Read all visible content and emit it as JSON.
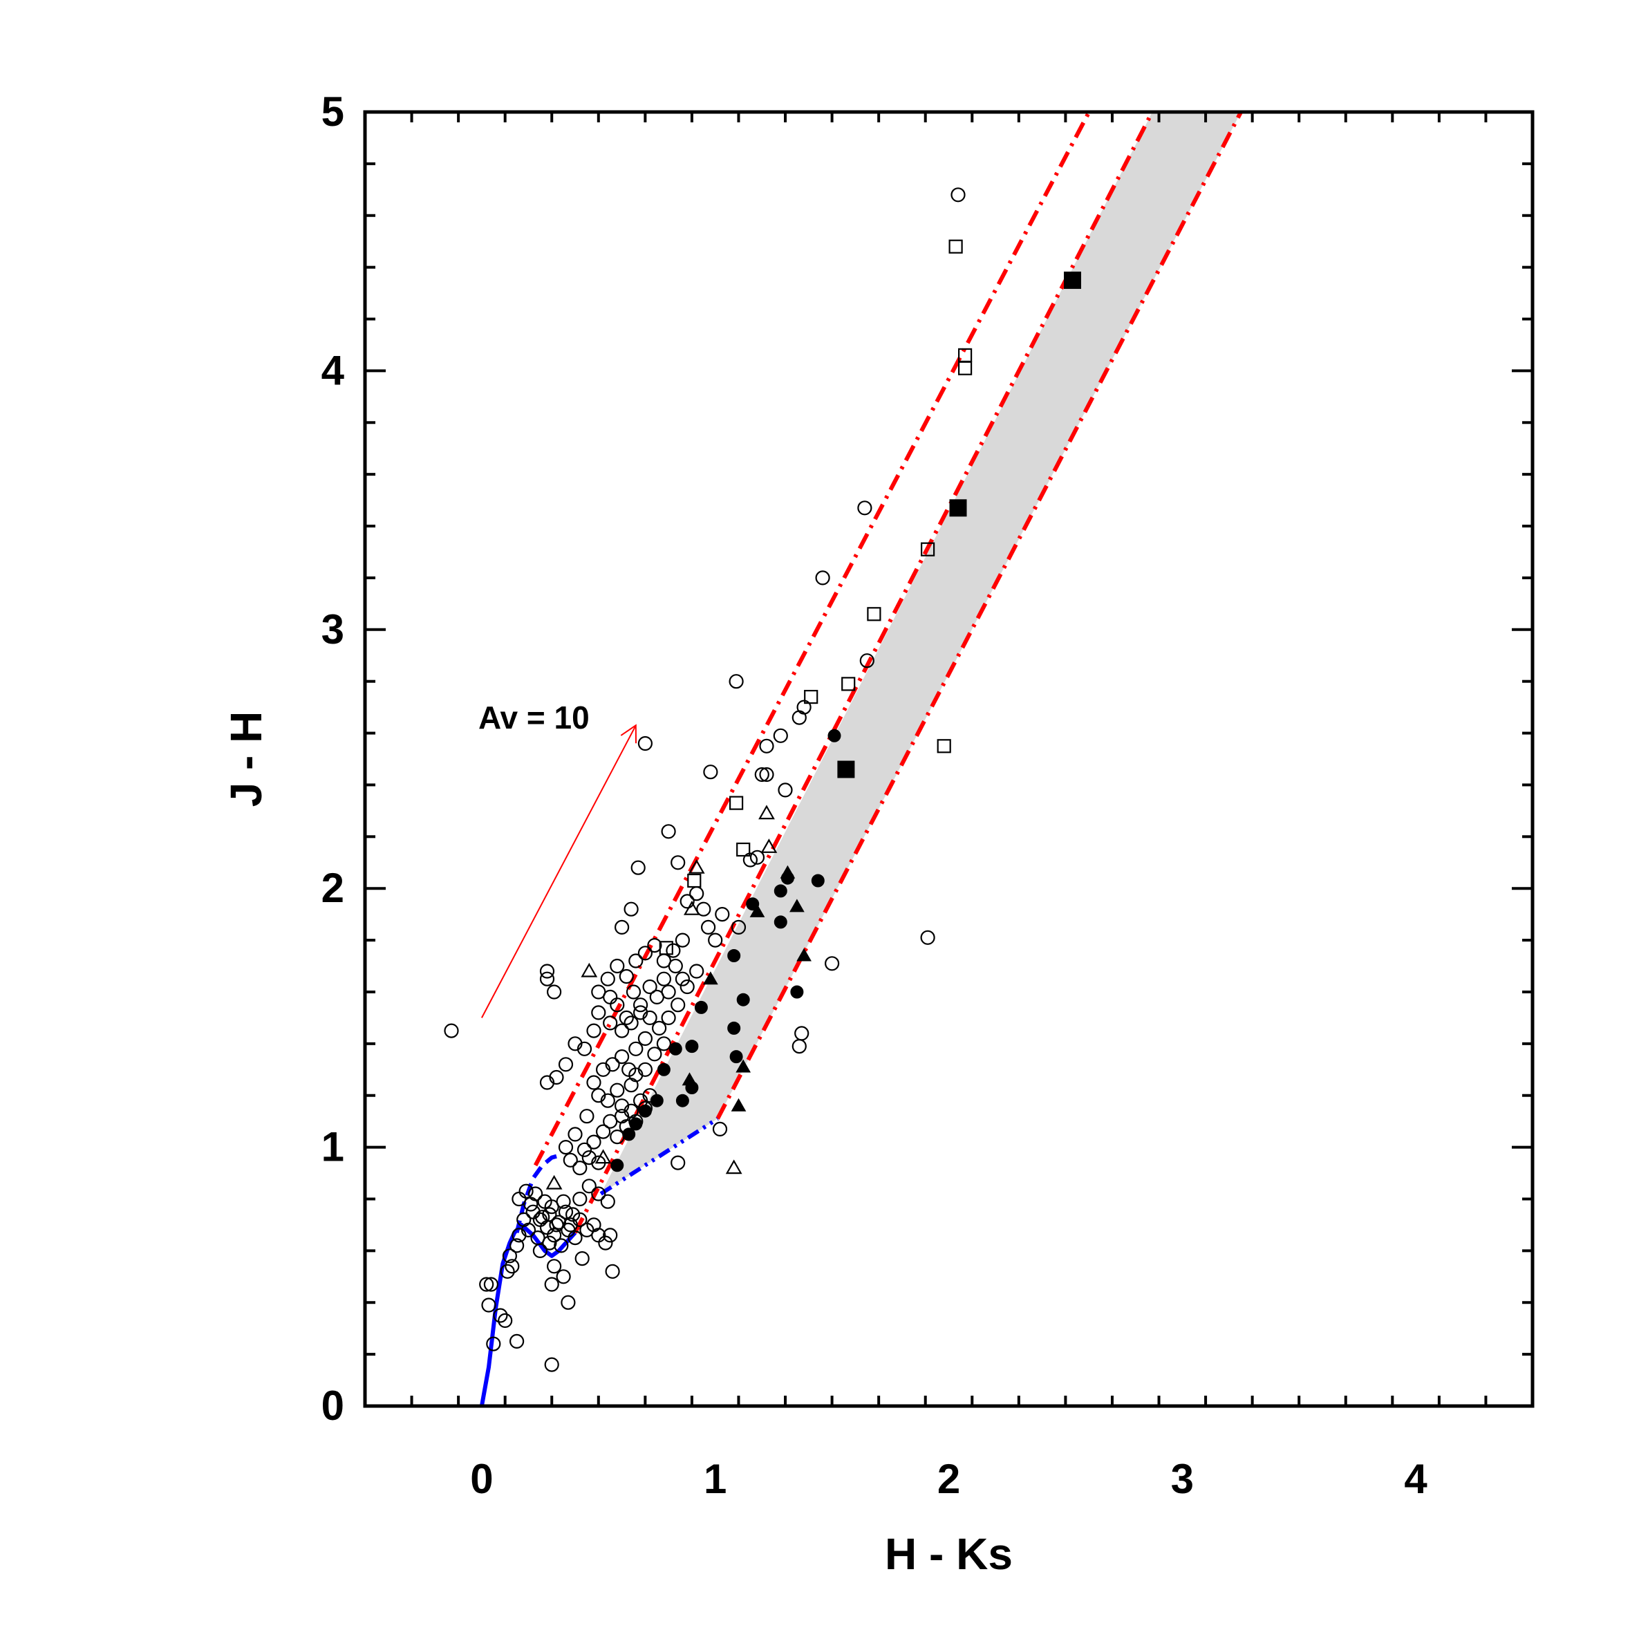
{
  "chart_data": {
    "type": "scatter",
    "title": "",
    "xlabel": "H - Ks",
    "ylabel": "J - H",
    "xlim": [
      -0.5,
      4.5
    ],
    "ylim": [
      0,
      5
    ],
    "x_ticks": [
      "0",
      "1",
      "2",
      "3",
      "4"
    ],
    "y_ticks": [
      "0",
      "1",
      "2",
      "3",
      "4",
      "5"
    ],
    "grid": false,
    "legend": "none",
    "colors": {
      "reddening_lines": "#ff0000",
      "dwarf_locus": "#0000ff",
      "ctts_locus": "#0000ff",
      "shaded_band": "#d9d9d9",
      "markers": "#000000"
    },
    "annotation": {
      "text": "Av = 10",
      "arrow_from": [
        0.0,
        1.5
      ],
      "arrow_to": [
        0.66,
        2.63
      ],
      "color": "#ff0000"
    },
    "dwarf_locus": [
      [
        0.0,
        0.0
      ],
      [
        0.03,
        0.15
      ],
      [
        0.06,
        0.38
      ],
      [
        0.09,
        0.55
      ],
      [
        0.12,
        0.63
      ],
      [
        0.14,
        0.67
      ],
      [
        0.17,
        0.7
      ],
      [
        0.22,
        0.66
      ],
      [
        0.27,
        0.6
      ],
      [
        0.3,
        0.58
      ],
      [
        0.33,
        0.6
      ],
      [
        0.36,
        0.63
      ],
      [
        0.4,
        0.67
      ]
    ],
    "giant_branch": [
      [
        0.15,
        0.67
      ],
      [
        0.18,
        0.78
      ],
      [
        0.22,
        0.88
      ],
      [
        0.26,
        0.93
      ],
      [
        0.3,
        0.96
      ],
      [
        0.34,
        0.97
      ]
    ],
    "ctts_locus": [
      [
        0.51,
        0.82
      ],
      [
        1.01,
        1.11
      ]
    ],
    "reddening_lines": [
      {
        "name": "giant-upper",
        "x": [
          0.23,
          2.63
        ],
        "y": [
          0.93,
          5.05
        ]
      },
      {
        "name": "dwarf-lower",
        "x": [
          0.4,
          2.9
        ],
        "y": [
          0.67,
          5.05
        ]
      },
      {
        "name": "ctts-end",
        "x": [
          1.01,
          3.28
        ],
        "y": [
          1.11,
          5.05
        ]
      }
    ],
    "shaded_band": [
      [
        0.51,
        0.82
      ],
      [
        1.01,
        1.11
      ],
      [
        3.28,
        5.05
      ],
      [
        2.9,
        5.05
      ]
    ],
    "series": [
      {
        "marker": "open-circle",
        "points": [
          [
            -0.13,
            1.45
          ],
          [
            0.02,
            0.47
          ],
          [
            0.03,
            0.39
          ],
          [
            0.04,
            0.47
          ],
          [
            0.05,
            0.24
          ],
          [
            0.08,
            0.35
          ],
          [
            0.1,
            0.33
          ],
          [
            0.11,
            0.52
          ],
          [
            0.12,
            0.58
          ],
          [
            0.13,
            0.54
          ],
          [
            0.15,
            0.25
          ],
          [
            0.15,
            0.62
          ],
          [
            0.16,
            0.66
          ],
          [
            0.18,
            0.72
          ],
          [
            0.2,
            0.68
          ],
          [
            0.22,
            0.75
          ],
          [
            0.24,
            0.65
          ],
          [
            0.26,
            0.73
          ],
          [
            0.28,
            0.69
          ],
          [
            0.3,
            0.77
          ],
          [
            0.32,
            0.7
          ],
          [
            0.34,
            0.62
          ],
          [
            0.36,
            0.75
          ],
          [
            0.38,
            0.7
          ],
          [
            0.4,
            0.65
          ],
          [
            0.16,
            0.8
          ],
          [
            0.19,
            0.83
          ],
          [
            0.21,
            0.78
          ],
          [
            0.23,
            0.82
          ],
          [
            0.25,
            0.72
          ],
          [
            0.27,
            0.79
          ],
          [
            0.29,
            0.74
          ],
          [
            0.31,
            0.66
          ],
          [
            0.33,
            0.71
          ],
          [
            0.35,
            0.79
          ],
          [
            0.37,
            0.68
          ],
          [
            0.39,
            0.74
          ],
          [
            0.42,
            0.72
          ],
          [
            0.45,
            0.68
          ],
          [
            0.48,
            0.7
          ],
          [
            0.5,
            0.66
          ],
          [
            0.53,
            0.63
          ],
          [
            0.55,
            0.66
          ],
          [
            0.25,
            0.6
          ],
          [
            0.29,
            0.63
          ],
          [
            0.31,
            0.54
          ],
          [
            0.35,
            0.5
          ],
          [
            0.3,
            0.47
          ],
          [
            0.37,
            0.4
          ],
          [
            0.43,
            0.57
          ],
          [
            0.56,
            0.52
          ],
          [
            0.3,
            0.16
          ],
          [
            0.42,
            0.8
          ],
          [
            0.46,
            0.85
          ],
          [
            0.5,
            0.82
          ],
          [
            0.54,
            0.79
          ],
          [
            0.38,
            0.95
          ],
          [
            0.42,
            0.92
          ],
          [
            0.46,
            0.96
          ],
          [
            0.5,
            0.94
          ],
          [
            0.36,
            1.0
          ],
          [
            0.4,
            1.05
          ],
          [
            0.44,
            0.99
          ],
          [
            0.48,
            1.02
          ],
          [
            0.52,
            1.06
          ],
          [
            0.55,
            1.1
          ],
          [
            0.58,
            1.04
          ],
          [
            0.6,
            1.12
          ],
          [
            0.62,
            1.08
          ],
          [
            0.64,
            1.14
          ],
          [
            0.66,
            1.1
          ],
          [
            0.68,
            1.18
          ],
          [
            0.7,
            1.15
          ],
          [
            0.72,
            1.2
          ],
          [
            0.45,
            1.12
          ],
          [
            0.5,
            1.2
          ],
          [
            0.54,
            1.18
          ],
          [
            0.58,
            1.22
          ],
          [
            0.6,
            1.16
          ],
          [
            0.64,
            1.24
          ],
          [
            0.66,
            1.28
          ],
          [
            0.7,
            1.3
          ],
          [
            0.48,
            1.25
          ],
          [
            0.52,
            1.3
          ],
          [
            0.56,
            1.32
          ],
          [
            0.6,
            1.35
          ],
          [
            0.63,
            1.3
          ],
          [
            0.66,
            1.38
          ],
          [
            0.7,
            1.42
          ],
          [
            0.74,
            1.36
          ],
          [
            0.78,
            1.4
          ],
          [
            0.28,
            1.25
          ],
          [
            0.32,
            1.27
          ],
          [
            0.36,
            1.32
          ],
          [
            0.4,
            1.4
          ],
          [
            0.44,
            1.38
          ],
          [
            0.48,
            1.45
          ],
          [
            0.5,
            1.52
          ],
          [
            0.55,
            1.48
          ],
          [
            0.58,
            1.55
          ],
          [
            0.62,
            1.5
          ],
          [
            0.65,
            1.6
          ],
          [
            0.68,
            1.55
          ],
          [
            0.72,
            1.62
          ],
          [
            0.75,
            1.58
          ],
          [
            0.78,
            1.65
          ],
          [
            0.8,
            1.6
          ],
          [
            0.83,
            1.7
          ],
          [
            0.86,
            1.65
          ],
          [
            0.6,
            1.45
          ],
          [
            0.64,
            1.48
          ],
          [
            0.68,
            1.52
          ],
          [
            0.72,
            1.5
          ],
          [
            0.76,
            1.46
          ],
          [
            0.8,
            1.5
          ],
          [
            0.84,
            1.55
          ],
          [
            0.88,
            1.62
          ],
          [
            0.92,
            1.68
          ],
          [
            0.5,
            1.6
          ],
          [
            0.54,
            1.65
          ],
          [
            0.58,
            1.7
          ],
          [
            0.62,
            1.66
          ],
          [
            0.66,
            1.72
          ],
          [
            0.7,
            1.75
          ],
          [
            0.74,
            1.78
          ],
          [
            0.78,
            1.72
          ],
          [
            0.82,
            1.76
          ],
          [
            0.86,
            1.8
          ],
          [
            0.28,
            1.65
          ],
          [
            0.28,
            1.68
          ],
          [
            0.31,
            1.6
          ],
          [
            0.55,
            1.58
          ],
          [
            0.6,
            1.85
          ],
          [
            0.64,
            1.92
          ],
          [
            0.67,
            2.08
          ],
          [
            0.8,
            2.22
          ],
          [
            0.84,
            2.1
          ],
          [
            0.88,
            1.95
          ],
          [
            0.92,
            1.98
          ],
          [
            0.95,
            1.92
          ],
          [
            0.97,
            1.85
          ],
          [
            0.98,
            2.45
          ],
          [
            1.0,
            1.8
          ],
          [
            1.03,
            1.9
          ],
          [
            1.09,
            2.8
          ],
          [
            1.1,
            1.85
          ],
          [
            1.15,
            2.11
          ],
          [
            1.18,
            2.12
          ],
          [
            1.2,
            2.44
          ],
          [
            1.22,
            2.44
          ],
          [
            1.22,
            2.55
          ],
          [
            1.28,
            2.59
          ],
          [
            1.3,
            2.38
          ],
          [
            1.36,
            2.66
          ],
          [
            1.38,
            2.7
          ],
          [
            1.46,
            3.2
          ],
          [
            1.64,
            3.47
          ],
          [
            1.65,
            2.88
          ],
          [
            1.5,
            1.71
          ],
          [
            1.36,
            1.39
          ],
          [
            1.37,
            1.44
          ],
          [
            1.91,
            1.81
          ],
          [
            2.04,
            4.68
          ],
          [
            0.7,
            2.56
          ],
          [
            0.84,
            0.94
          ],
          [
            1.02,
            1.07
          ]
        ]
      },
      {
        "marker": "filled-circle",
        "points": [
          [
            0.58,
            0.93
          ],
          [
            0.63,
            1.05
          ],
          [
            0.66,
            1.09
          ],
          [
            0.7,
            1.14
          ],
          [
            0.75,
            1.18
          ],
          [
            0.78,
            1.3
          ],
          [
            0.83,
            1.38
          ],
          [
            0.86,
            1.18
          ],
          [
            0.9,
            1.23
          ],
          [
            0.9,
            1.39
          ],
          [
            0.94,
            1.54
          ],
          [
            1.08,
            1.46
          ],
          [
            1.09,
            1.35
          ],
          [
            1.12,
            1.57
          ],
          [
            1.08,
            1.74
          ],
          [
            1.16,
            1.94
          ],
          [
            1.28,
            1.99
          ],
          [
            1.28,
            1.87
          ],
          [
            1.31,
            2.04
          ],
          [
            1.35,
            1.6
          ],
          [
            1.44,
            2.03
          ],
          [
            1.51,
            2.59
          ]
        ]
      },
      {
        "marker": "open-triangle",
        "points": [
          [
            0.46,
            1.68
          ],
          [
            0.31,
            0.86
          ],
          [
            0.52,
            0.96
          ],
          [
            0.9,
            1.92
          ],
          [
            0.92,
            2.08
          ],
          [
            1.22,
            2.29
          ],
          [
            1.23,
            2.16
          ],
          [
            1.08,
            0.92
          ]
        ]
      },
      {
        "marker": "filled-triangle",
        "points": [
          [
            0.89,
            1.26
          ],
          [
            0.98,
            1.65
          ],
          [
            1.1,
            1.16
          ],
          [
            1.12,
            1.31
          ],
          [
            1.18,
            1.91
          ],
          [
            1.31,
            2.06
          ],
          [
            1.35,
            1.93
          ],
          [
            1.38,
            1.74
          ]
        ]
      },
      {
        "marker": "open-square",
        "points": [
          [
            0.79,
            1.77
          ],
          [
            0.91,
            2.03
          ],
          [
            1.09,
            2.33
          ],
          [
            1.12,
            2.15
          ],
          [
            1.41,
            2.74
          ],
          [
            1.57,
            2.79
          ],
          [
            1.68,
            3.06
          ],
          [
            1.91,
            3.31
          ],
          [
            1.98,
            2.55
          ],
          [
            2.03,
            4.48
          ],
          [
            2.07,
            4.01
          ],
          [
            2.07,
            4.06
          ]
        ]
      },
      {
        "marker": "filled-square",
        "points": [
          [
            1.56,
            2.46
          ],
          [
            2.04,
            3.47
          ],
          [
            2.53,
            4.35
          ]
        ]
      }
    ]
  }
}
